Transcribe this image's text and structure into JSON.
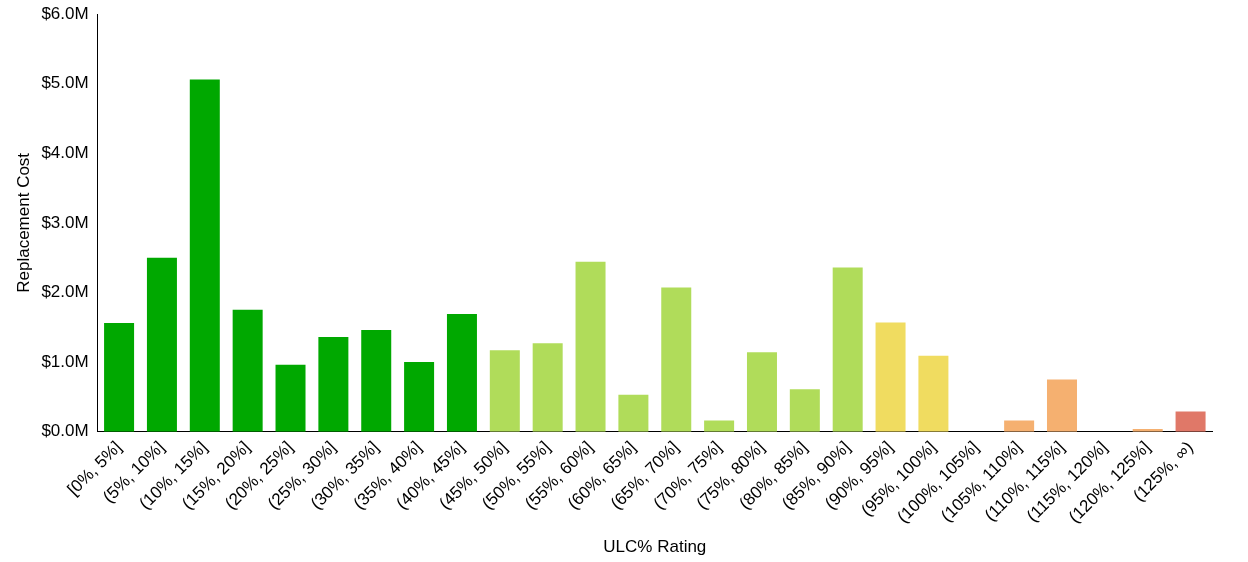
{
  "chart_data": {
    "type": "bar",
    "xlabel": "ULC% Rating",
    "ylabel": "Replacement Cost",
    "categories": [
      "[0%, 5%]",
      "(5%, 10%]",
      "(10%, 15%]",
      "(15%, 20%]",
      "(20%, 25%]",
      "(25%, 30%]",
      "(30%, 35%]",
      "(35%, 40%]",
      "(40%, 45%]",
      "(45%, 50%]",
      "(50%, 55%]",
      "(55%, 60%]",
      "(60%, 65%]",
      "(65%, 70%]",
      "(70%, 75%]",
      "(75%, 80%]",
      "(80%, 85%]",
      "(85%, 90%]",
      "(90%, 95%]",
      "(95%, 100%]",
      "(100%, 105%]",
      "(105%, 110%]",
      "(110%, 115%]",
      "(115%, 120%]",
      "(120%, 125%]",
      "(125%, ∞)"
    ],
    "values": [
      1.56,
      2.5,
      5.06,
      1.75,
      0.96,
      1.36,
      1.46,
      1.0,
      1.69,
      1.17,
      1.27,
      2.44,
      0.53,
      2.07,
      0.16,
      1.14,
      0.61,
      2.36,
      1.57,
      1.09,
      0,
      0.16,
      0.75,
      0,
      0.04,
      0.29
    ],
    "colors": [
      "#00a800",
      "#00a800",
      "#00a800",
      "#00a800",
      "#00a800",
      "#00a800",
      "#00a800",
      "#00a800",
      "#00a800",
      "#b0dc5a",
      "#b0dc5a",
      "#b0dc5a",
      "#b0dc5a",
      "#b0dc5a",
      "#b0dc5a",
      "#b0dc5a",
      "#b0dc5a",
      "#b0dc5a",
      "#f0dc60",
      "#f0dc60",
      "#f5b070",
      "#f5b070",
      "#f5b070",
      "#f5b070",
      "#f5b070",
      "#e07868"
    ],
    "ylim": [
      0,
      6
    ],
    "yticks": [
      {
        "value": 0,
        "label": "$0.0M"
      },
      {
        "value": 1,
        "label": "$1.0M"
      },
      {
        "value": 2,
        "label": "$2.0M"
      },
      {
        "value": 3,
        "label": "$3.0M"
      },
      {
        "value": 4,
        "label": "$4.0M"
      },
      {
        "value": 5,
        "label": "$5.0M"
      },
      {
        "value": 6,
        "label": "$6.0M"
      }
    ],
    "grid": false,
    "legend": false
  }
}
